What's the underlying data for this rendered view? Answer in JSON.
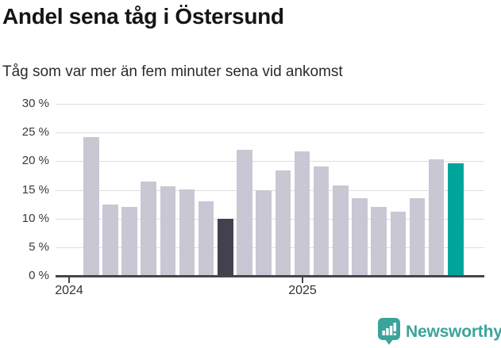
{
  "header": {
    "title": "Andel sena tåg i Östersund",
    "subtitle": "Tåg som var mer än fem minuter sena vid ankomst"
  },
  "chart_data": {
    "type": "bar",
    "title": "Andel sena tåg i Östersund",
    "subtitle": "Tåg som var mer än fem minuter sena vid ankomst",
    "unit": "%",
    "values": [
      24.2,
      12.4,
      12.0,
      16.5,
      15.6,
      15.1,
      13.0,
      9.9,
      22.0,
      15.0,
      18.4,
      21.7,
      19.1,
      15.8,
      13.5,
      12.0,
      11.2,
      13.5,
      20.3,
      19.7
    ],
    "bar_default_color": "#c9c7d3",
    "highlights": [
      {
        "index": 7,
        "color": "#44414f"
      },
      {
        "index": 19,
        "color": "#00a69b"
      }
    ],
    "ylim": [
      0,
      30
    ],
    "yticks": [
      {
        "value": 30,
        "label": "30 %"
      },
      {
        "value": 25,
        "label": "25 %"
      },
      {
        "value": 20,
        "label": "20 %"
      },
      {
        "value": 15,
        "label": "15 %"
      },
      {
        "value": 10,
        "label": "10 %"
      },
      {
        "value": 5,
        "label": "5 %"
      },
      {
        "value": 0,
        "label": "0 %"
      }
    ],
    "xticks": [
      {
        "label": "2024"
      },
      {
        "label": "2025"
      }
    ],
    "grid": true,
    "legend": "none",
    "axis_color": "#45454d",
    "gridline_color": "#dedee0"
  },
  "footer": {
    "brand": "Newsworthy",
    "brand_color": "#3ba39b",
    "logo_icon": "newsworthy-bar-chart-speech-bubble-icon"
  }
}
